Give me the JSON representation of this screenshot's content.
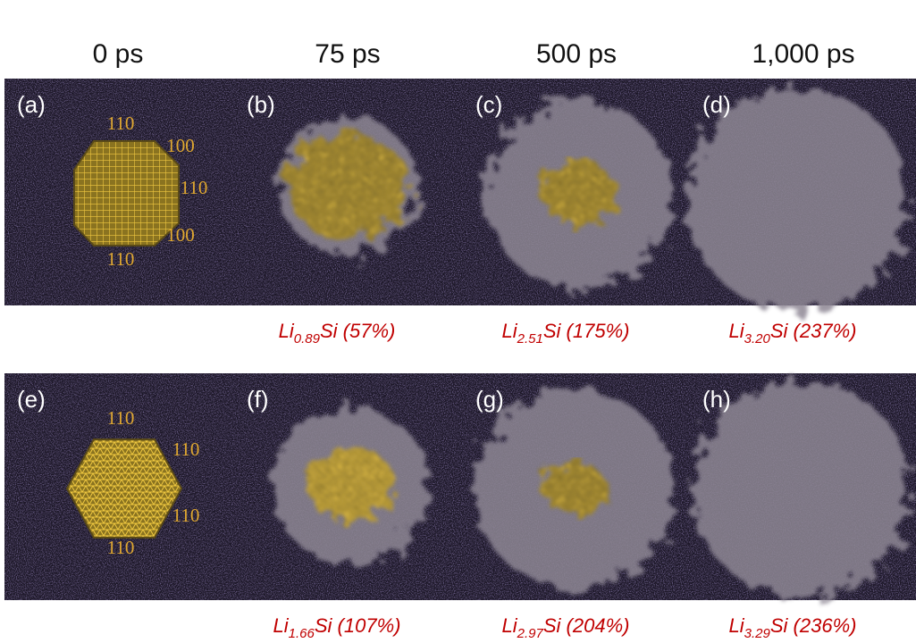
{
  "columns": [
    "0 ps",
    "75 ps",
    "500 ps",
    "1,000 ps"
  ],
  "rows": [
    {
      "panels": [
        {
          "label": "(a)",
          "facets": [
            "110",
            "100",
            "110",
            "100",
            "110"
          ]
        },
        {
          "label": "(b)",
          "caption": [
            "Li",
            "0.89",
            "Si (57%)"
          ]
        },
        {
          "label": "(c)",
          "caption": [
            "Li",
            "2.51",
            "Si (175%)"
          ]
        },
        {
          "label": "(d)",
          "caption": [
            "Li",
            "3.20",
            "Si (237%)"
          ]
        }
      ]
    },
    {
      "panels": [
        {
          "label": "(e)",
          "facets": [
            "110",
            "110",
            "110",
            "110"
          ]
        },
        {
          "label": "(f)",
          "caption": [
            "Li",
            "1.66",
            "Si (107%)"
          ]
        },
        {
          "label": "(g)",
          "caption": [
            "Li",
            "2.97",
            "Si (204%)"
          ]
        },
        {
          "label": "(h)",
          "caption": [
            "Li",
            "3.29",
            "Si (236%)"
          ]
        }
      ]
    }
  ]
}
